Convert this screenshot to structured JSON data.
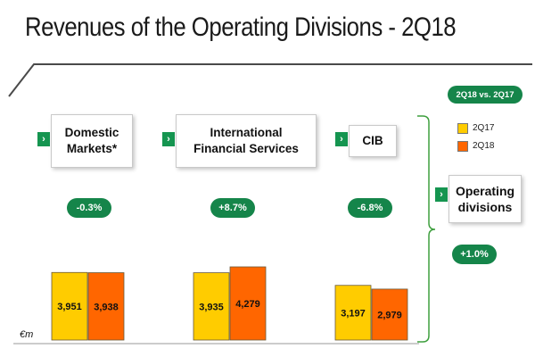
{
  "title": "Revenues of the Operating Divisions - 2Q18",
  "unit": "€m",
  "legend": {
    "header": "2Q18 vs. 2Q17",
    "items": [
      {
        "label": "2Q17",
        "color": "#FFCC00"
      },
      {
        "label": "2Q18",
        "color": "#FF6600"
      }
    ]
  },
  "divisions": [
    {
      "name_line1": "Domestic",
      "name_line2": "Markets*",
      "change": "-0.3%",
      "values": [
        "3,951",
        "3,938"
      ]
    },
    {
      "name_line1": "International",
      "name_line2": "Financial Services",
      "change": "+8.7%",
      "values": [
        "3,935",
        "4,279"
      ]
    },
    {
      "name_line1": "CIB",
      "name_line2": "",
      "change": "-6.8%",
      "values": [
        "3,197",
        "2,979"
      ]
    }
  ],
  "operating": {
    "name_line1": "Operating",
    "name_line2": "divisions",
    "change": "+1.0%"
  },
  "chart_data": {
    "type": "bar",
    "title": "Revenues of the Operating Divisions - 2Q18",
    "ylabel": "€m",
    "categories": [
      "Domestic Markets*",
      "International Financial Services",
      "CIB"
    ],
    "series": [
      {
        "name": "2Q17",
        "values": [
          3951,
          3935,
          3197
        ]
      },
      {
        "name": "2Q18",
        "values": [
          3938,
          4279,
          2979
        ]
      }
    ],
    "annotations": [
      "-0.3%",
      "+8.7%",
      "-6.8%",
      "+1.0%"
    ],
    "colors": {
      "2Q17": "#FFCC00",
      "2Q18": "#FF6600"
    }
  }
}
